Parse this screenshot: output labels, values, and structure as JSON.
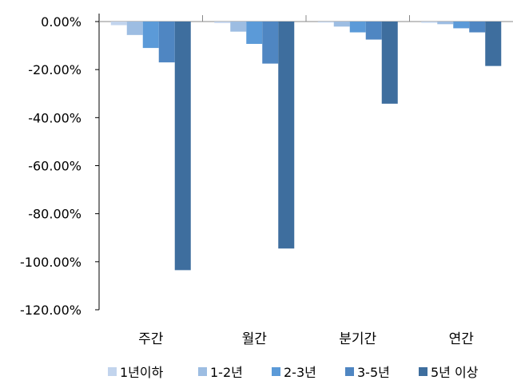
{
  "chart_data": {
    "type": "bar",
    "categories": [
      "주간",
      "월간",
      "분기간",
      "연간"
    ],
    "series": [
      {
        "name": "1년이하",
        "values": [
          -1.5,
          -0.6,
          -0.4,
          -0.5
        ],
        "color": "#c2d4ed"
      },
      {
        "name": "1-2년",
        "values": [
          -5.6,
          -4.2,
          -2.1,
          -1.1
        ],
        "color": "#9dbde2"
      },
      {
        "name": "2-3년",
        "values": [
          -11.0,
          -9.3,
          -4.5,
          -2.8
        ],
        "color": "#5b9ad8"
      },
      {
        "name": "3-5년",
        "values": [
          -17.0,
          -17.5,
          -7.5,
          -4.5
        ],
        "color": "#4f86c2"
      },
      {
        "name": "5년 이상",
        "values": [
          -103.5,
          -94.5,
          -34.2,
          -18.5
        ],
        "color": "#3e6e9e"
      }
    ],
    "ylim": [
      -120,
      0
    ],
    "yticks": [
      "0.00%",
      "-20.00%",
      "-40.00%",
      "-60.00%",
      "-80.00%",
      "-100.00%",
      "-120.00%"
    ],
    "ytick_values": [
      0,
      -20,
      -40,
      -60,
      -80,
      -100,
      -120
    ],
    "legend_position": "bottom",
    "grid": false
  }
}
